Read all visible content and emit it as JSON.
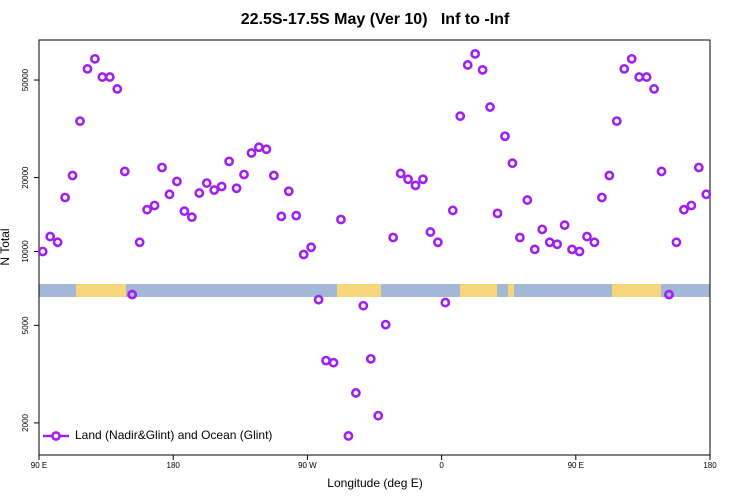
{
  "chart_data": {
    "type": "scatter",
    "title": "22.5S-17.5S May (Ver 10)   Inf to -Inf",
    "x_label": "Longitude (deg E)",
    "y_label": "N Total",
    "x": [
      92.5,
      97.5,
      102.5,
      107.5,
      112.5,
      117.5,
      122.5,
      127.5,
      132.5,
      137.5,
      142.5,
      147.5,
      152.5,
      157.5,
      162.5,
      167.5,
      172.5,
      177.5,
      182.5,
      187.5,
      192.5,
      197.5,
      202.5,
      207.5,
      212.5,
      217.5,
      222.5,
      227.5,
      232.5,
      237.5,
      242.5,
      247.5,
      252.5,
      257.5,
      262.5,
      267.5,
      272.5,
      277.5,
      282.5,
      287.5,
      292.5,
      297.5,
      302.5,
      307.5,
      312.5,
      317.5,
      322.5,
      327.5,
      332.5,
      337.5,
      342.5,
      347.5,
      352.5,
      357.5,
      362.5,
      367.5,
      372.5,
      377.5,
      382.5,
      387.5,
      392.5,
      397.5,
      402.5,
      407.5,
      412.5,
      417.5,
      422.5,
      427.5,
      432.5,
      437.5,
      442.5,
      447.5,
      452.5,
      457.5,
      462.5,
      467.5,
      472.5,
      477.5,
      482.5,
      487.5,
      492.5,
      497.5,
      502.5,
      507.5,
      512.5,
      517.5,
      522.5,
      527.5,
      532.5,
      537.5
    ],
    "series": [
      {
        "name": "Land (Nadir&Glint) and Ocean (Glint)",
        "color": "#a020f0",
        "values": [
          10000,
          11500,
          10900,
          16600,
          20400,
          34000,
          55500,
          61000,
          51400,
          51400,
          46000,
          21200,
          6670,
          10900,
          14800,
          15400,
          22000,
          17100,
          19300,
          14600,
          13800,
          17300,
          19000,
          17800,
          18400,
          23300,
          18100,
          20600,
          25200,
          26600,
          26100,
          20400,
          13900,
          17600,
          14000,
          9720,
          10400,
          6360,
          3590,
          3520,
          13500,
          1770,
          2650,
          6010,
          3650,
          2140,
          5030,
          11400,
          20800,
          19700,
          18600,
          19700,
          12000,
          10900,
          6190,
          14700,
          35600,
          57600,
          63900,
          55000,
          38800,
          14300,
          29500,
          22900,
          11400,
          16200,
          10200,
          12300,
          10900,
          10700,
          12800,
          10200,
          10000,
          11500,
          10900,
          16600,
          20400,
          34000,
          55500,
          61000,
          51400,
          51400,
          46000,
          21200,
          6670,
          10900,
          14800,
          15400,
          22000,
          17100
        ]
      }
    ],
    "xlim": [
      90,
      540
    ],
    "xticks": [
      {
        "value": 90,
        "label": "90 E"
      },
      180,
      {
        "value": 270,
        "label": "90 W"
      },
      {
        "value": 360,
        "label": "0"
      },
      {
        "value": 450,
        "label": "90 E"
      },
      {
        "value": 540,
        "label": "180"
      }
    ],
    "ylim": [
      1480,
      72800
    ],
    "yticks": [
      2000,
      5000,
      10000,
      20000,
      50000
    ],
    "log_y": true,
    "legend": "bottom-left"
  }
}
